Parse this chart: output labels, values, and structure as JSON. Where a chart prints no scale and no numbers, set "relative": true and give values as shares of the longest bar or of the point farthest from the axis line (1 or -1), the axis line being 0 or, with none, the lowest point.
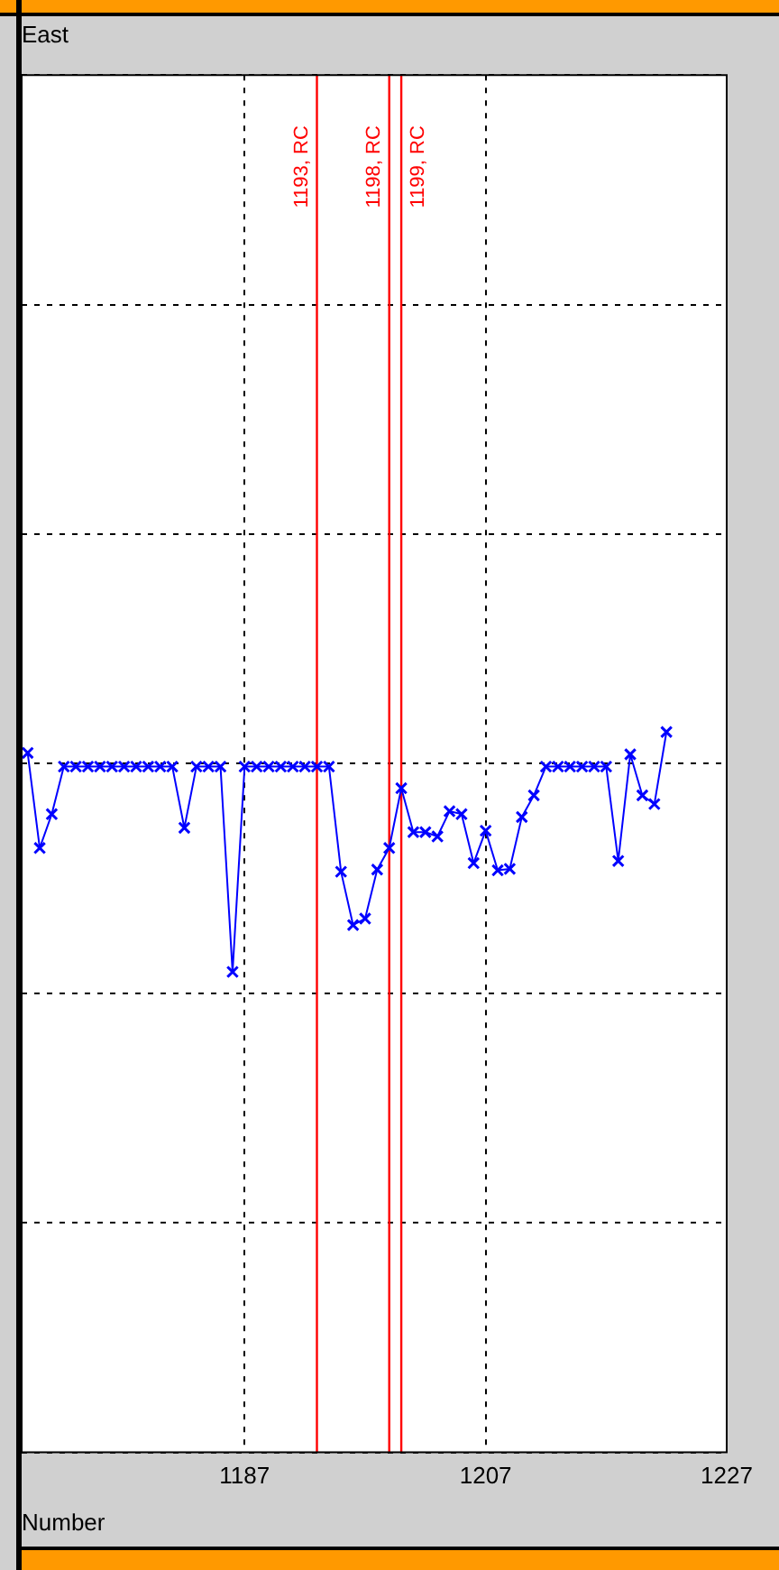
{
  "chart_data": {
    "type": "line",
    "title": "East",
    "xlabel": "Number",
    "relative": true,
    "xlim": [
      1168.5,
      1227
    ],
    "xticks": [
      1187,
      1207,
      1227
    ],
    "grid": true,
    "legend": false,
    "marker": "cross",
    "line_style": "solid",
    "x": [
      1169,
      1170,
      1171,
      1172,
      1173,
      1174,
      1175,
      1176,
      1177,
      1178,
      1179,
      1180,
      1181,
      1182,
      1183,
      1184,
      1185,
      1186,
      1187,
      1188,
      1189,
      1190,
      1191,
      1192,
      1193,
      1194,
      1195,
      1196,
      1197,
      1198,
      1199,
      1200,
      1201,
      1202,
      1203,
      1204,
      1205,
      1206,
      1207,
      1208,
      1209,
      1210,
      1211,
      1212,
      1213,
      1214,
      1215,
      1216,
      1217,
      1218,
      1219,
      1220,
      1221,
      1222
    ],
    "series": [
      {
        "color": "#0000ff",
        "values": [
          0.971,
          0.839,
          0.886,
          0.952,
          0.952,
          0.952,
          0.952,
          0.952,
          0.952,
          0.952,
          0.952,
          0.952,
          0.952,
          0.867,
          0.952,
          0.952,
          0.952,
          0.667,
          0.952,
          0.952,
          0.952,
          0.952,
          0.952,
          0.952,
          0.952,
          0.952,
          0.806,
          0.732,
          0.741,
          0.809,
          0.839,
          0.922,
          0.861,
          0.861,
          0.855,
          0.89,
          0.886,
          0.818,
          0.863,
          0.808,
          0.81,
          0.882,
          0.912,
          0.952,
          0.952,
          0.952,
          0.952,
          0.952,
          0.952,
          0.821,
          0.969,
          0.912,
          0.9,
          1
        ]
      }
    ],
    "ref_lines": [
      {
        "axis": "x",
        "value": 1193,
        "label": "1193, RC",
        "color": "#ff0000"
      },
      {
        "axis": "x",
        "value": 1199,
        "label": "1198, RC",
        "color": "#ff0000"
      },
      {
        "axis": "x",
        "value": 1200,
        "label": "1199, RC",
        "color": "#ff0000"
      }
    ]
  }
}
